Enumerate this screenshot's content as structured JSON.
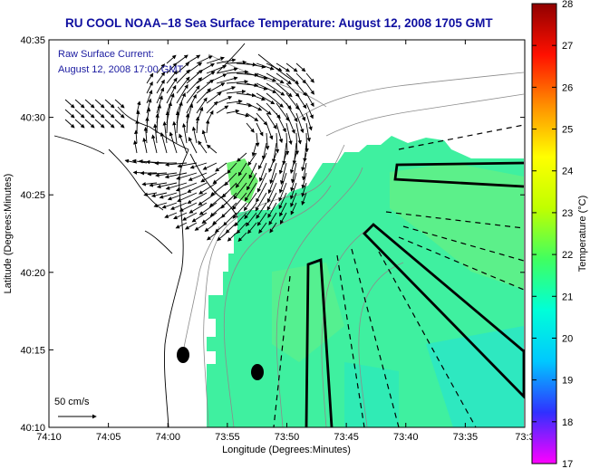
{
  "title": "RU COOL  NOAA–18  Sea Surface Temperature:  August 12, 2008 1705 GMT",
  "annotation": {
    "line1": "Raw Surface Current:",
    "line2": "August 12, 2008 17:00 GMT"
  },
  "scale_label": "50 cm/s",
  "map": {
    "xlabel": "Longitude (Degrees:Minutes)",
    "ylabel": "Latitude (Degrees:Minutes)",
    "x_ticks": [
      "74:10",
      "74:05",
      "74:00",
      "73:55",
      "73:50",
      "73:45",
      "73:40",
      "73:35",
      "73:3"
    ],
    "y_ticks": [
      "40:35",
      "40:30",
      "40:25",
      "40:20",
      "40:15",
      "40:10"
    ],
    "lon_range": [
      -74.1667,
      -73.5
    ],
    "lat_range": [
      40.1667,
      40.5833
    ]
  },
  "colorbar": {
    "label": "Temperature (°C)",
    "ticks": [
      "28",
      "27",
      "26",
      "25",
      "24",
      "23",
      "22",
      "21",
      "20",
      "19",
      "18",
      "17"
    ],
    "range": [
      17,
      28
    ],
    "stops": [
      "#ff00ff",
      "#3030ff",
      "#00c8ff",
      "#00ffd8",
      "#40ff60",
      "#c0ff00",
      "#ffff00",
      "#ff9000",
      "#ff1000",
      "#900000"
    ]
  },
  "chart_data": {
    "type": "map",
    "sst_typical_c": 21.5,
    "sst_color": "#3ff0a0"
  }
}
